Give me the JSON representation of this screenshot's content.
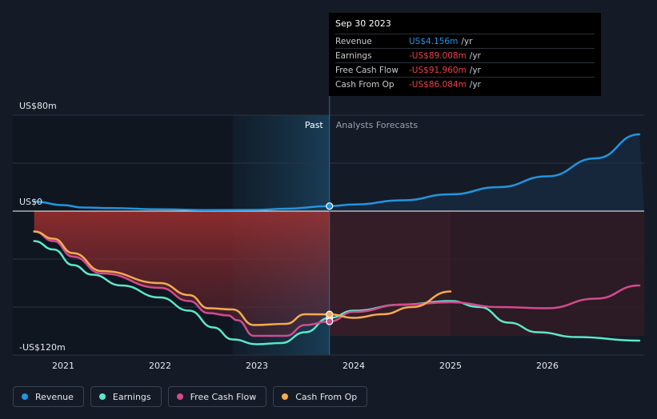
{
  "chart_data": {
    "type": "line",
    "title": "",
    "divider_label_left": "Past",
    "divider_label_right": "Analysts Forecasts",
    "y_ticks": [
      {
        "value": 80,
        "label": "US$80m"
      },
      {
        "value": 0,
        "label": "US$0"
      },
      {
        "value": -120,
        "label": "-US$120m"
      }
    ],
    "ylim": [
      -120,
      80
    ],
    "xlim": [
      2020.7,
      2026.95
    ],
    "x_ticks": [
      {
        "value": 2021,
        "label": "2021"
      },
      {
        "value": 2022,
        "label": "2022"
      },
      {
        "value": 2023,
        "label": "2023"
      },
      {
        "value": 2024,
        "label": "2024"
      },
      {
        "value": 2025,
        "label": "2025"
      },
      {
        "value": 2026,
        "label": "2026"
      }
    ],
    "past_end": 2023.75,
    "series": [
      {
        "name": "Revenue",
        "color": "#2394df",
        "points": [
          [
            2020.7,
            8
          ],
          [
            2021.0,
            5
          ],
          [
            2021.2,
            3
          ],
          [
            2021.5,
            2.5
          ],
          [
            2022.0,
            1.5
          ],
          [
            2022.5,
            0.8
          ],
          [
            2023.0,
            1
          ],
          [
            2023.3,
            2
          ],
          [
            2023.75,
            4.156
          ],
          [
            2024.0,
            5.5
          ],
          [
            2024.5,
            9
          ],
          [
            2025.0,
            14
          ],
          [
            2025.5,
            20
          ],
          [
            2026.0,
            29
          ],
          [
            2026.5,
            44
          ],
          [
            2026.95,
            64
          ]
        ]
      },
      {
        "name": "Earnings",
        "color": "#5fe6c9",
        "points": [
          [
            2020.7,
            -25
          ],
          [
            2020.9,
            -32
          ],
          [
            2021.1,
            -45
          ],
          [
            2021.3,
            -53
          ],
          [
            2021.6,
            -62
          ],
          [
            2022.0,
            -72
          ],
          [
            2022.3,
            -83
          ],
          [
            2022.55,
            -97
          ],
          [
            2022.75,
            -107
          ],
          [
            2023.0,
            -111
          ],
          [
            2023.25,
            -110
          ],
          [
            2023.5,
            -101
          ],
          [
            2023.75,
            -89.008
          ],
          [
            2024.0,
            -83
          ],
          [
            2024.5,
            -78
          ],
          [
            2025.0,
            -75
          ],
          [
            2025.3,
            -80
          ],
          [
            2025.6,
            -93
          ],
          [
            2025.9,
            -101
          ],
          [
            2026.3,
            -105
          ],
          [
            2026.95,
            -108
          ]
        ]
      },
      {
        "name": "Free Cash Flow",
        "color": "#d14b8f",
        "points": [
          [
            2020.7,
            -17
          ],
          [
            2020.9,
            -25
          ],
          [
            2021.1,
            -38
          ],
          [
            2021.4,
            -52
          ],
          [
            2022.0,
            -64
          ],
          [
            2022.3,
            -75
          ],
          [
            2022.5,
            -85
          ],
          [
            2022.7,
            -87
          ],
          [
            2022.8,
            -91
          ],
          [
            2022.97,
            -104
          ],
          [
            2023.3,
            -104
          ],
          [
            2023.5,
            -95
          ],
          [
            2023.75,
            -91.96
          ],
          [
            2024.0,
            -84
          ],
          [
            2024.5,
            -78
          ],
          [
            2025.0,
            -76
          ],
          [
            2025.5,
            -80
          ],
          [
            2026.0,
            -81
          ],
          [
            2026.5,
            -73
          ],
          [
            2026.95,
            -62
          ]
        ]
      },
      {
        "name": "Cash From Op",
        "color": "#f5aa52",
        "points": [
          [
            2020.7,
            -17
          ],
          [
            2020.9,
            -23
          ],
          [
            2021.1,
            -35
          ],
          [
            2021.4,
            -50
          ],
          [
            2022.0,
            -60
          ],
          [
            2022.3,
            -70
          ],
          [
            2022.5,
            -81
          ],
          [
            2022.75,
            -82
          ],
          [
            2022.97,
            -95
          ],
          [
            2023.3,
            -94
          ],
          [
            2023.5,
            -86
          ],
          [
            2023.75,
            -86.084
          ],
          [
            2024.0,
            -89
          ],
          [
            2024.3,
            -86
          ],
          [
            2024.6,
            -80
          ],
          [
            2025.0,
            -67
          ]
        ]
      }
    ]
  },
  "tooltip": {
    "date": "Sep 30 2023",
    "rows": [
      {
        "label": "Revenue",
        "value": "US$4.156m",
        "unit": "/yr",
        "color": "#2394df"
      },
      {
        "label": "Earnings",
        "value": "-US$89.008m",
        "unit": "/yr",
        "color": "#e8404a"
      },
      {
        "label": "Free Cash Flow",
        "value": "-US$91.960m",
        "unit": "/yr",
        "color": "#e8404a"
      },
      {
        "label": "Cash From Op",
        "value": "-US$86.084m",
        "unit": "/yr",
        "color": "#e8404a"
      }
    ]
  },
  "legend": [
    {
      "label": "Revenue",
      "color": "#2394df"
    },
    {
      "label": "Earnings",
      "color": "#5fe6c9"
    },
    {
      "label": "Free Cash Flow",
      "color": "#d14b8f"
    },
    {
      "label": "Cash From Op",
      "color": "#f5aa52"
    }
  ]
}
